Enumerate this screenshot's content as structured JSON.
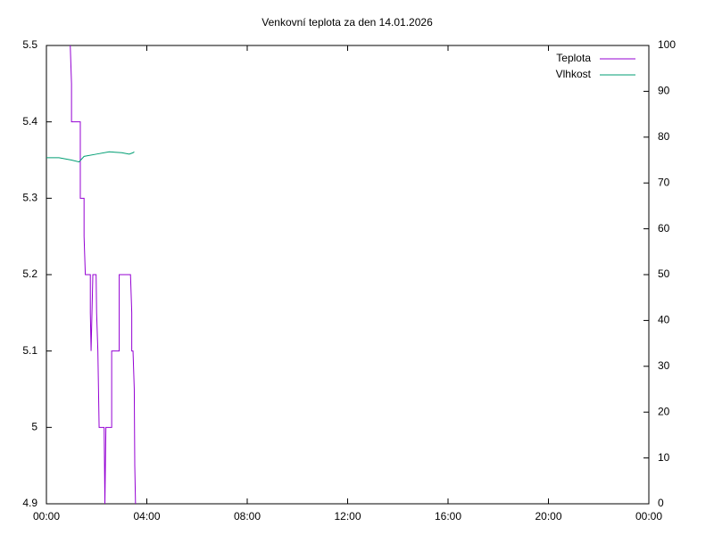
{
  "chart_data": {
    "type": "line",
    "title": "Venkovní teplota za den 14.01.2026",
    "xlim": [
      0,
      24
    ],
    "xticks": [
      {
        "value": 0,
        "label": "00:00"
      },
      {
        "value": 4,
        "label": "04:00"
      },
      {
        "value": 8,
        "label": "08:00"
      },
      {
        "value": 12,
        "label": "12:00"
      },
      {
        "value": 16,
        "label": "16:00"
      },
      {
        "value": 20,
        "label": "20:00"
      },
      {
        "value": 24,
        "label": "00:00"
      }
    ],
    "ylim": [
      4.9,
      5.5
    ],
    "yticks": [
      4.9,
      5,
      5.1,
      5.2,
      5.3,
      5.4,
      5.5
    ],
    "y2lim": [
      0,
      100
    ],
    "y2ticks": [
      0,
      10,
      20,
      30,
      40,
      50,
      60,
      70,
      80,
      90,
      100
    ],
    "grid": false,
    "legend": "top right",
    "series": [
      {
        "name": "Teplota",
        "color": "#9400d3",
        "x": [
          0.95,
          1.0,
          1.0,
          1.35,
          1.35,
          1.5,
          1.5,
          1.55,
          1.75,
          1.75,
          1.78,
          1.85,
          1.98,
          2.0,
          2.05,
          2.1,
          2.3,
          2.33,
          2.37,
          2.6,
          2.6,
          2.9,
          2.9,
          3.35,
          3.4,
          3.4,
          3.45,
          3.5,
          3.52,
          3.55
        ],
        "values": [
          5.5,
          5.45,
          5.4,
          5.4,
          5.3,
          5.3,
          5.25,
          5.2,
          5.2,
          5.15,
          5.1,
          5.2,
          5.2,
          5.15,
          5.1,
          5.0,
          5.0,
          4.9,
          5.0,
          5.0,
          5.1,
          5.1,
          5.2,
          5.2,
          5.15,
          5.1,
          5.1,
          5.05,
          4.95,
          4.9
        ]
      },
      {
        "name": "Vlhkost",
        "color": "#009e73",
        "axis": "y2",
        "x": [
          0,
          0.5,
          1.0,
          1.3,
          1.5,
          2.0,
          2.5,
          3.0,
          3.3,
          3.45,
          3.5
        ],
        "values": [
          75.5,
          75.5,
          75.0,
          74.6,
          75.8,
          76.3,
          76.8,
          76.6,
          76.3,
          76.6,
          76.8
        ]
      }
    ]
  }
}
